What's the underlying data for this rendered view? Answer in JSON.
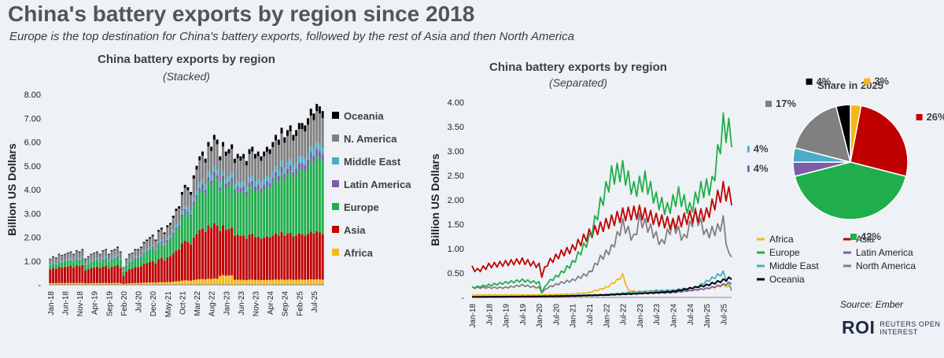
{
  "header": {
    "title": "China's battery exports by region since 2018",
    "subtitle": "Europe is the top destination for China's battery exports, followed by the rest of Asia and then North America"
  },
  "source": "Source:  Ember",
  "logo": {
    "mark": "ROI",
    "line1": "REUTERS OPEN",
    "line2": "INTEREST"
  },
  "colors": {
    "Africa": "#f5b915",
    "Asia": "#c00000",
    "Europe": "#1fae4b",
    "Latin America": "#7b5ea7",
    "Middle East": "#4bacc6",
    "N. America": "#808080",
    "Oceania": "#000000"
  },
  "chart_data": [
    {
      "id": "stacked",
      "type": "bar",
      "stacked": true,
      "title": "China battery exports by region",
      "subtitle": "(Stacked)",
      "ylabel": "Billion US Dollars",
      "ylim": [
        0,
        8
      ],
      "yticks": [
        "-",
        "1.00",
        "2.00",
        "3.00",
        "4.00",
        "5.00",
        "6.00",
        "7.00",
        "8.00"
      ],
      "xticks": [
        "Jan-18",
        "Jun-18",
        "Nov-18",
        "Apr-19",
        "Sep-19",
        "Feb-20",
        "Jul-20",
        "Dec-20",
        "May-21",
        "Oct-21",
        "Mar-22",
        "Aug-22",
        "Jan-23",
        "Jun-23",
        "Nov-23",
        "Apr-24",
        "Sep-24",
        "Feb-25",
        "Jul-25"
      ],
      "legend": [
        "Oceania",
        "N. America",
        "Middle East",
        "Latin America",
        "Europe",
        "Asia",
        "Africa"
      ],
      "legend_position": "right",
      "categories_start": "Jan-18",
      "months": 94,
      "totals": [
        1.1,
        1.2,
        1.15,
        1.3,
        1.25,
        1.3,
        1.35,
        1.4,
        1.3,
        1.45,
        1.4,
        1.5,
        1.1,
        1.2,
        1.3,
        1.35,
        1.4,
        1.3,
        1.45,
        1.5,
        1.3,
        1.45,
        1.5,
        1.6,
        1.4,
        0.75,
        1.1,
        1.3,
        1.35,
        1.5,
        1.5,
        1.6,
        1.8,
        1.9,
        2.0,
        2.1,
        1.9,
        2.3,
        2.4,
        2.2,
        2.5,
        2.6,
        2.9,
        3.2,
        3.3,
        3.9,
        4.2,
        4.1,
        3.9,
        4.6,
        5.0,
        5.4,
        5.6,
        5.3,
        6.0,
        5.8,
        6.3,
        6.1,
        5.4,
        6.0,
        5.6,
        5.7,
        5.9,
        5.3,
        5.5,
        5.4,
        5.5,
        5.2,
        5.7,
        5.8,
        5.5,
        5.6,
        5.4,
        5.6,
        5.8,
        5.7,
        6.0,
        6.3,
        6.1,
        6.6,
        6.2,
        6.5,
        6.7,
        6.3,
        6.5,
        6.8,
        6.8,
        6.7,
        7.0,
        7.4,
        7.2,
        7.6,
        7.5,
        7.3
      ],
      "shares_start": {
        "Africa": 0.06,
        "Asia": 0.53,
        "Europe": 0.15,
        "Latin America": 0.02,
        "Middle East": 0.04,
        "N. America": 0.18,
        "Oceania": 0.02
      },
      "shares_end": {
        "Africa": 0.03,
        "Asia": 0.26,
        "Europe": 0.42,
        "Latin America": 0.04,
        "Middle East": 0.04,
        "N. America": 0.17,
        "Oceania": 0.04
      }
    },
    {
      "id": "separated",
      "type": "line",
      "title": "China battery exports by region",
      "subtitle": "(Separated)",
      "ylabel": "Billion US Dollars",
      "ylim": [
        0,
        4
      ],
      "yticks": [
        "-",
        "0.50",
        "1.00",
        "1.50",
        "2.00",
        "2.50",
        "3.00",
        "3.50",
        "4.00"
      ],
      "xticks": [
        "Jan-18",
        "Jul-18",
        "Jan-19",
        "Jul-19",
        "Jan-20",
        "Jul-20",
        "Jan-21",
        "Jul-21",
        "Jan-22",
        "Jul-22",
        "Jan-23",
        "Jul-23",
        "Jan-24",
        "Jul-24",
        "Jan-25",
        "Jul-25"
      ],
      "months": 94,
      "legend": [
        "Africa",
        "Asia",
        "Europe",
        "Latin America",
        "Middle East",
        "North America",
        "Oceania"
      ],
      "legend_position": "bottom-right",
      "series": [
        {
          "name": "Asia",
          "color": "#c00000",
          "anchors": [
            [
              0,
              0.6
            ],
            [
              2,
              0.55
            ],
            [
              6,
              0.65
            ],
            [
              12,
              0.7
            ],
            [
              18,
              0.75
            ],
            [
              24,
              0.65
            ],
            [
              25,
              0.45
            ],
            [
              27,
              0.7
            ],
            [
              32,
              0.9
            ],
            [
              36,
              1.0
            ],
            [
              42,
              1.3
            ],
            [
              48,
              1.5
            ],
            [
              54,
              1.7
            ],
            [
              60,
              1.75
            ],
            [
              66,
              1.6
            ],
            [
              72,
              1.5
            ],
            [
              78,
              1.65
            ],
            [
              84,
              1.7
            ],
            [
              90,
              2.2
            ],
            [
              93,
              2.05
            ]
          ]
        },
        {
          "name": "Europe",
          "color": "#1fae4b",
          "anchors": [
            [
              0,
              0.2
            ],
            [
              6,
              0.25
            ],
            [
              12,
              0.3
            ],
            [
              18,
              0.35
            ],
            [
              24,
              0.3
            ],
            [
              25,
              0.1
            ],
            [
              27,
              0.3
            ],
            [
              32,
              0.5
            ],
            [
              36,
              0.7
            ],
            [
              42,
              1.2
            ],
            [
              46,
              1.9
            ],
            [
              50,
              2.5
            ],
            [
              54,
              2.6
            ],
            [
              58,
              2.2
            ],
            [
              62,
              2.4
            ],
            [
              66,
              2.0
            ],
            [
              70,
              1.8
            ],
            [
              74,
              2.1
            ],
            [
              78,
              1.8
            ],
            [
              82,
              2.2
            ],
            [
              86,
              2.3
            ],
            [
              90,
              3.5
            ],
            [
              93,
              3.35
            ]
          ]
        },
        {
          "name": "North America",
          "color": "#808080",
          "anchors": [
            [
              0,
              0.2
            ],
            [
              6,
              0.2
            ],
            [
              12,
              0.2
            ],
            [
              18,
              0.25
            ],
            [
              24,
              0.2
            ],
            [
              25,
              0.1
            ],
            [
              27,
              0.2
            ],
            [
              32,
              0.3
            ],
            [
              36,
              0.35
            ],
            [
              42,
              0.5
            ],
            [
              46,
              0.8
            ],
            [
              50,
              1.0
            ],
            [
              54,
              1.5
            ],
            [
              58,
              1.2
            ],
            [
              60,
              1.6
            ],
            [
              64,
              1.4
            ],
            [
              68,
              1.1
            ],
            [
              72,
              1.5
            ],
            [
              76,
              1.2
            ],
            [
              80,
              1.7
            ],
            [
              84,
              1.3
            ],
            [
              88,
              1.4
            ],
            [
              90,
              1.55
            ],
            [
              92,
              0.85
            ],
            [
              93,
              0.9
            ]
          ]
        },
        {
          "name": "Africa",
          "color": "#f5b915",
          "anchors": [
            [
              0,
              0.05
            ],
            [
              12,
              0.05
            ],
            [
              24,
              0.05
            ],
            [
              30,
              0.06
            ],
            [
              36,
              0.07
            ],
            [
              42,
              0.1
            ],
            [
              48,
              0.2
            ],
            [
              52,
              0.35
            ],
            [
              54,
              0.45
            ],
            [
              56,
              0.15
            ],
            [
              60,
              0.1
            ],
            [
              66,
              0.15
            ],
            [
              72,
              0.12
            ],
            [
              80,
              0.15
            ],
            [
              86,
              0.2
            ],
            [
              90,
              0.25
            ],
            [
              93,
              0.2
            ]
          ]
        },
        {
          "name": "Latin America",
          "color": "#7b5ea7",
          "anchors": [
            [
              0,
              0.01
            ],
            [
              24,
              0.02
            ],
            [
              36,
              0.03
            ],
            [
              48,
              0.05
            ],
            [
              60,
              0.08
            ],
            [
              72,
              0.1
            ],
            [
              84,
              0.18
            ],
            [
              93,
              0.3
            ]
          ]
        },
        {
          "name": "Middle East",
          "color": "#4bacc6",
          "anchors": [
            [
              0,
              0.01
            ],
            [
              24,
              0.02
            ],
            [
              36,
              0.04
            ],
            [
              48,
              0.06
            ],
            [
              60,
              0.12
            ],
            [
              72,
              0.15
            ],
            [
              80,
              0.2
            ],
            [
              88,
              0.45
            ],
            [
              90,
              0.5
            ],
            [
              93,
              0.15
            ]
          ]
        },
        {
          "name": "Oceania",
          "color": "#000000",
          "anchors": [
            [
              0,
              0.01
            ],
            [
              24,
              0.02
            ],
            [
              36,
              0.03
            ],
            [
              48,
              0.05
            ],
            [
              60,
              0.08
            ],
            [
              72,
              0.12
            ],
            [
              84,
              0.25
            ],
            [
              90,
              0.35
            ],
            [
              93,
              0.4
            ]
          ]
        }
      ]
    },
    {
      "id": "pie",
      "type": "pie",
      "title": "Share in 2025",
      "slices": [
        {
          "name": "Africa",
          "value": 3,
          "label": "3%"
        },
        {
          "name": "Asia",
          "value": 26,
          "label": "26%"
        },
        {
          "name": "Europe",
          "value": 42,
          "label": "42%"
        },
        {
          "name": "Latin America",
          "value": 4,
          "label": "4%"
        },
        {
          "name": "Middle East",
          "value": 4,
          "label": "4%"
        },
        {
          "name": "N. America",
          "value": 17,
          "label": "17%"
        },
        {
          "name": "Oceania",
          "value": 4,
          "label": "4%"
        }
      ]
    }
  ]
}
